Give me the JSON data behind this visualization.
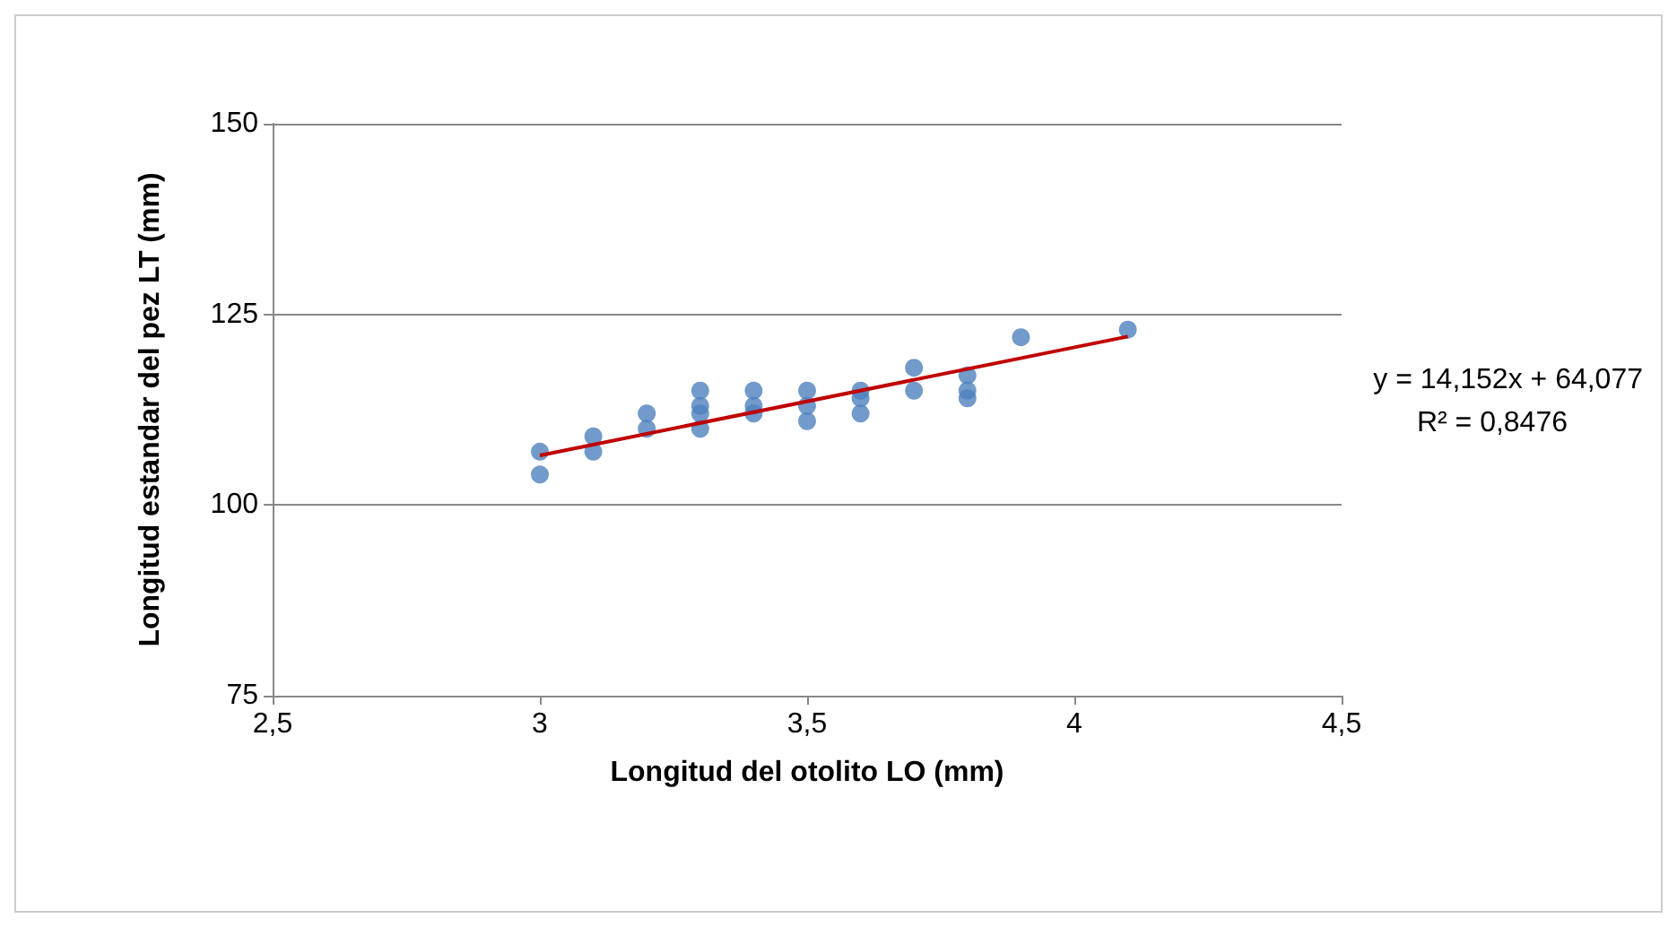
{
  "chart_data": {
    "type": "scatter",
    "xlabel": "Longitud del otolito LO (mm)",
    "ylabel": "Longitud estandar del pez LT (mm)",
    "xlim": [
      2.5,
      4.5
    ],
    "xticks": [
      {
        "value": 2.5,
        "label": "2,5"
      },
      3,
      {
        "value": 3.5,
        "label": "3,5"
      },
      4,
      {
        "value": 4.5,
        "label": "4,5"
      }
    ],
    "ylim": [
      75,
      150
    ],
    "yticks": [
      75,
      100,
      125,
      150
    ],
    "grid": "y",
    "series": [
      {
        "marker": "circle",
        "color": "#4f81bd",
        "x": [
          3,
          3,
          3.1,
          3.1,
          3.2,
          3.2,
          3.3,
          3.3,
          3.3,
          3.3,
          3.4,
          3.4,
          3.4,
          3.5,
          3.5,
          3.5,
          3.6,
          3.6,
          3.6,
          3.7,
          3.7,
          3.8,
          3.8,
          3.8,
          3.9,
          4.1
        ],
        "values": [
          107,
          104,
          109,
          107,
          112,
          110,
          115,
          113,
          112,
          110,
          115,
          113,
          112,
          115,
          113,
          111,
          115,
          114,
          112,
          118,
          115,
          117,
          115,
          114,
          122,
          123
        ]
      },
      {
        "type": "line",
        "marker": "none",
        "color": "#c00000",
        "x": [
          3,
          4.1
        ],
        "values": [
          106.5,
          122.1
        ]
      }
    ],
    "annotations": [
      "y = 14,152x + 64,077",
      "R² = 0,8476"
    ]
  }
}
